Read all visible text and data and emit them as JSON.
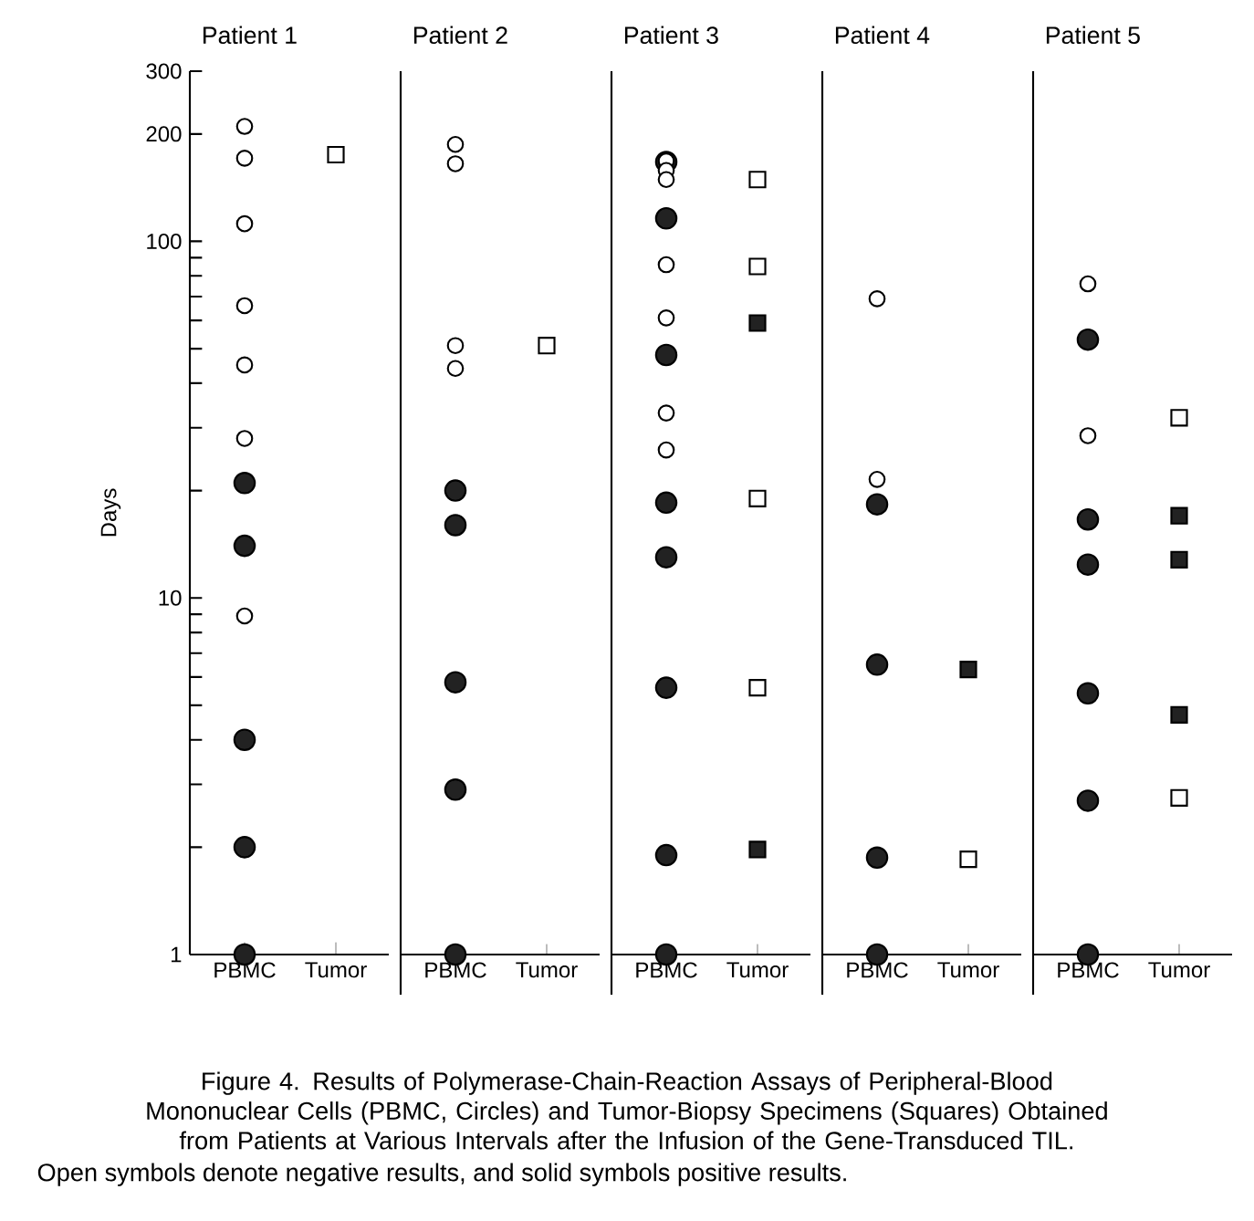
{
  "chart_data": [
    {
      "type": "scatter",
      "title": "Patient 1",
      "ylabel": "Days",
      "categories": [
        "PBMC",
        "Tumor"
      ],
      "log": "y",
      "ylim": [
        1,
        300
      ],
      "yticks": [
        1,
        {
          "value": 2,
          "label": null
        },
        {
          "value": 3,
          "label": null
        },
        {
          "value": 4,
          "label": null
        },
        {
          "value": 5,
          "label": null
        },
        {
          "value": 6,
          "label": null
        },
        {
          "value": 7,
          "label": null
        },
        {
          "value": 8,
          "label": null
        },
        {
          "value": 9,
          "label": null
        },
        10,
        {
          "value": 20,
          "label": null
        },
        {
          "value": 30,
          "label": null
        },
        {
          "value": 40,
          "label": null
        },
        {
          "value": 50,
          "label": null
        },
        {
          "value": 60,
          "label": null
        },
        {
          "value": 70,
          "label": null
        },
        {
          "value": 80,
          "label": null
        },
        {
          "value": 90,
          "label": null
        },
        100,
        200,
        300
      ],
      "series": [
        {
          "marker": "circle",
          "color": "#ffffff",
          "x": [
            "PBMC",
            "PBMC",
            "PBMC",
            "PBMC",
            "PBMC",
            "PBMC",
            "PBMC"
          ],
          "values": [
            210,
            171,
            112,
            66,
            45,
            28,
            8.9
          ]
        },
        {
          "marker": "circle",
          "color": "#222222",
          "x": [
            "PBMC",
            "PBMC",
            "PBMC",
            "PBMC",
            "PBMC"
          ],
          "values": [
            21,
            14,
            4,
            2,
            1
          ]
        },
        {
          "marker": "square",
          "color": "#ffffff",
          "x": [
            "Tumor"
          ],
          "values": [
            175
          ]
        }
      ],
      "annotations": [
        "Figure 4. Results of Polymerase-Chain-Reaction Assays of Peripheral-Blood Mononuclear Cells (PBMC, Circles) and Tumor-Biopsy Specimens (Squares) Obtained from Patients at Various Intervals after the Infusion of the Gene-Transduced TIL.",
        "Open symbols denote negative results, and solid symbols positive results."
      ]
    },
    {
      "type": "scatter",
      "title": "Patient 2",
      "categories": [
        "PBMC",
        "Tumor"
      ],
      "log": "y",
      "ylim": [
        1,
        300
      ],
      "yticks": [
        1,
        10,
        100,
        200,
        300
      ],
      "tick_labels": "x",
      "series": [
        {
          "marker": "circle",
          "color": "#ffffff",
          "x": [
            "PBMC",
            "PBMC",
            "PBMC",
            "PBMC"
          ],
          "values": [
            187,
            165,
            51,
            44
          ]
        },
        {
          "marker": "circle",
          "color": "#222222",
          "x": [
            "PBMC",
            "PBMC",
            "PBMC",
            "PBMC",
            "PBMC"
          ],
          "values": [
            20,
            16,
            5.8,
            2.9,
            1
          ]
        },
        {
          "marker": "square",
          "color": "#ffffff",
          "x": [
            "Tumor"
          ],
          "values": [
            51
          ]
        }
      ]
    },
    {
      "type": "scatter",
      "title": "Patient 3",
      "categories": [
        "PBMC",
        "Tumor"
      ],
      "log": "y",
      "ylim": [
        1,
        300
      ],
      "yticks": [
        1,
        10,
        100,
        200,
        300
      ],
      "tick_labels": "x",
      "series": [
        {
          "marker": "circle",
          "color": "#222222",
          "x": [
            "PBMC",
            "PBMC",
            "PBMC",
            "PBMC",
            "PBMC",
            "PBMC",
            "PBMC",
            "PBMC"
          ],
          "values": [
            167,
            116,
            48,
            18.5,
            13,
            5.6,
            1.9,
            1
          ]
        },
        {
          "marker": "circle",
          "color": "#ffffff",
          "x": [
            "PBMC",
            "PBMC",
            "PBMC",
            "PBMC",
            "PBMC",
            "PBMC",
            "PBMC"
          ],
          "values": [
            168,
            158,
            149,
            86,
            61,
            33,
            26
          ]
        },
        {
          "marker": "square",
          "color": "#ffffff",
          "x": [
            "Tumor",
            "Tumor",
            "Tumor",
            "Tumor"
          ],
          "values": [
            149,
            85,
            19,
            5.6
          ]
        },
        {
          "marker": "square",
          "color": "#222222",
          "x": [
            "Tumor",
            "Tumor"
          ],
          "values": [
            59,
            1.97
          ]
        }
      ]
    },
    {
      "type": "scatter",
      "title": "Patient 4",
      "categories": [
        "PBMC",
        "Tumor"
      ],
      "log": "y",
      "ylim": [
        1,
        300
      ],
      "yticks": [
        1,
        10,
        100,
        200,
        300
      ],
      "tick_labels": "x",
      "series": [
        {
          "marker": "circle",
          "color": "#ffffff",
          "x": [
            "PBMC",
            "PBMC"
          ],
          "values": [
            69,
            21.5
          ]
        },
        {
          "marker": "circle",
          "color": "#222222",
          "x": [
            "PBMC",
            "PBMC",
            "PBMC",
            "PBMC"
          ],
          "values": [
            18.3,
            6.5,
            1.87,
            1
          ]
        },
        {
          "marker": "square",
          "color": "#ffffff",
          "x": [
            "Tumor"
          ],
          "values": [
            1.85
          ]
        },
        {
          "marker": "square",
          "color": "#222222",
          "x": [
            "Tumor"
          ],
          "values": [
            6.3
          ]
        }
      ]
    },
    {
      "type": "scatter",
      "title": "Patient 5",
      "categories": [
        "PBMC",
        "Tumor"
      ],
      "log": "y",
      "ylim": [
        1,
        300
      ],
      "yticks": [
        1,
        10,
        100,
        200,
        300
      ],
      "tick_labels": "x",
      "series": [
        {
          "marker": "circle",
          "color": "#ffffff",
          "x": [
            "PBMC",
            "PBMC"
          ],
          "values": [
            76,
            28.5
          ]
        },
        {
          "marker": "circle",
          "color": "#222222",
          "x": [
            "PBMC",
            "PBMC",
            "PBMC",
            "PBMC",
            "PBMC"
          ],
          "values": [
            53,
            16.6,
            12.4,
            5.4,
            2.7
          ]
        },
        {
          "marker": "circle",
          "color": "#222222",
          "x": [
            "PBMC"
          ],
          "values": [
            1
          ]
        },
        {
          "marker": "square",
          "color": "#ffffff",
          "x": [
            "Tumor",
            "Tumor"
          ],
          "values": [
            32,
            2.75
          ]
        },
        {
          "marker": "square",
          "color": "#222222",
          "x": [
            "Tumor",
            "Tumor",
            "Tumor"
          ],
          "values": [
            17,
            12.8,
            4.7
          ]
        }
      ]
    }
  ]
}
